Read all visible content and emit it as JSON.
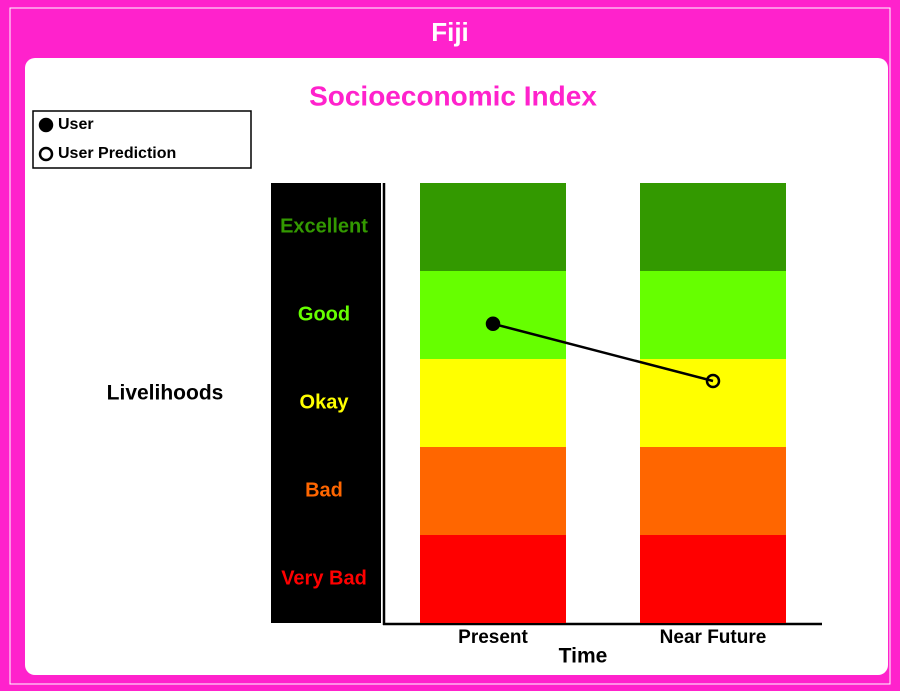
{
  "header": {
    "title": "Fiji"
  },
  "chart_data": {
    "type": "line",
    "title": "Socioeconomic Index",
    "categories": [
      "Present",
      "Near Future"
    ],
    "series": [
      {
        "name": "User",
        "color": "#000000",
        "values": [
          3.4,
          null
        ]
      },
      {
        "name": "User Prediction",
        "color": "#000000",
        "values": [
          null,
          2.75
        ]
      }
    ],
    "ylim": [
      0,
      5
    ],
    "yticks": [
      {
        "value": 0.5,
        "label": "Very Bad"
      },
      {
        "value": 1.5,
        "label": "Bad"
      },
      {
        "value": 2.5,
        "label": "Okay"
      },
      {
        "value": 3.5,
        "label": "Good"
      },
      {
        "value": 4.5,
        "label": "Excellent"
      }
    ],
    "band_colors": [
      "#ff0000",
      "#ff6600",
      "#ffff00",
      "#66ff00",
      "#339900"
    ],
    "y_label": "Livelihoods",
    "x_label": "Time"
  }
}
